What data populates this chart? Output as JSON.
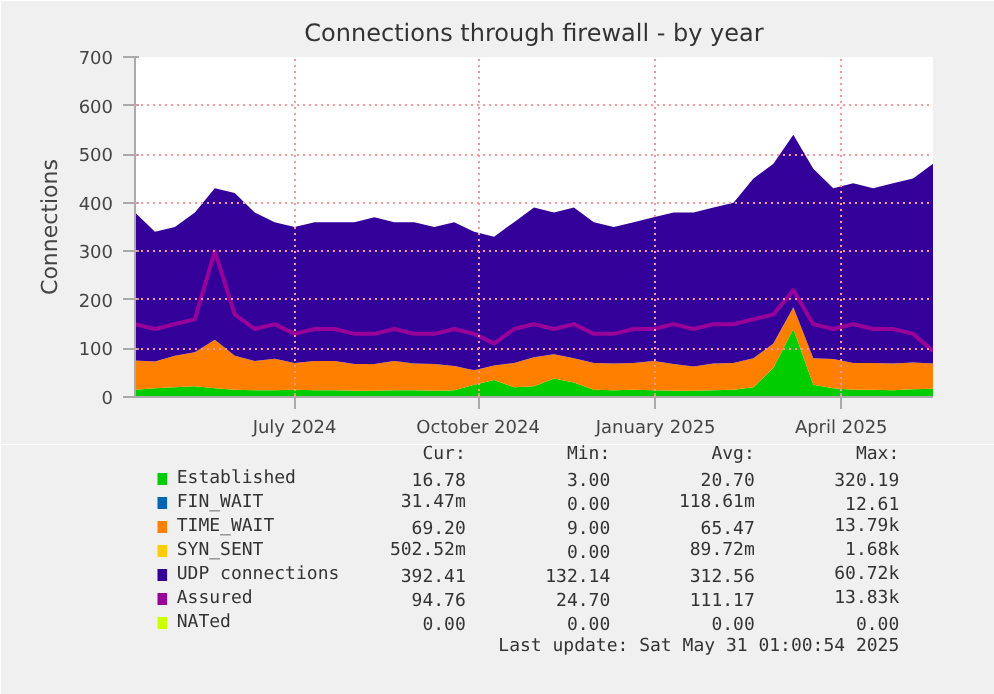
{
  "chart_data": {
    "type": "area",
    "stacked": true,
    "title": "Connections through firewall - by year",
    "ylabel": "Connections",
    "x": [
      "2024-04-26",
      "2024-05-06",
      "2024-05-16",
      "2024-05-26",
      "2024-06-05",
      "2024-06-15",
      "2024-06-25",
      "2024-07-05",
      "2024-07-15",
      "2024-07-25",
      "2024-08-04",
      "2024-08-14",
      "2024-08-24",
      "2024-09-03",
      "2024-09-13",
      "2024-09-23",
      "2024-10-03",
      "2024-10-13",
      "2024-10-23",
      "2024-11-02",
      "2024-11-12",
      "2024-11-22",
      "2024-12-02",
      "2024-12-12",
      "2024-12-22",
      "2025-01-01",
      "2025-01-11",
      "2025-01-21",
      "2025-01-31",
      "2025-02-10",
      "2025-02-20",
      "2025-03-02",
      "2025-03-12",
      "2025-03-22",
      "2025-04-01",
      "2025-04-11",
      "2025-04-21",
      "2025-05-01",
      "2025-05-11",
      "2025-05-21",
      "2025-05-31"
    ],
    "series": [
      {
        "name": "Established",
        "color": "#00cc00",
        "values": [
          15,
          18,
          20,
          22,
          18,
          15,
          14,
          14,
          15,
          14,
          14,
          13,
          13,
          14,
          14,
          13,
          14,
          25,
          35,
          20,
          22,
          38,
          30,
          15,
          14,
          15,
          14,
          13,
          13,
          14,
          15,
          20,
          60,
          140,
          25,
          18,
          15,
          15,
          14,
          16,
          17
        ]
      },
      {
        "name": "FIN_WAIT",
        "color": "#0066b3",
        "values": [
          null,
          null,
          null,
          null,
          null,
          null,
          null,
          null,
          null,
          null,
          null,
          null,
          null,
          null,
          null,
          null,
          null,
          null,
          null,
          null,
          null,
          null,
          null,
          null,
          null,
          null,
          null,
          null,
          null,
          null,
          null,
          null,
          null,
          null,
          null,
          null,
          null,
          null,
          null,
          null,
          null
        ]
      },
      {
        "name": "TIME_WAIT",
        "color": "#ff8000",
        "values": [
          60,
          55,
          65,
          70,
          100,
          70,
          60,
          65,
          55,
          60,
          60,
          55,
          55,
          60,
          55,
          55,
          50,
          30,
          30,
          50,
          60,
          50,
          50,
          55,
          55,
          55,
          60,
          55,
          50,
          55,
          55,
          60,
          50,
          45,
          55,
          60,
          55,
          55,
          55,
          55,
          52
        ]
      },
      {
        "name": "SYN_SENT",
        "color": "#ffcc00",
        "values": [
          null,
          null,
          null,
          null,
          null,
          null,
          null,
          null,
          null,
          null,
          null,
          null,
          null,
          null,
          null,
          null,
          null,
          null,
          null,
          null,
          null,
          null,
          null,
          null,
          null,
          null,
          null,
          null,
          null,
          null,
          null,
          null,
          null,
          null,
          null,
          null,
          null,
          null,
          null,
          null,
          null
        ]
      },
      {
        "name": "UDP connections",
        "color": "#330099",
        "values": [
          305,
          267,
          265,
          288,
          312,
          335,
          306,
          281,
          280,
          286,
          286,
          292,
          302,
          286,
          291,
          282,
          296,
          285,
          265,
          290,
          308,
          292,
          310,
          290,
          281,
          290,
          296,
          312,
          317,
          321,
          330,
          370,
          370,
          355,
          390,
          352,
          370,
          360,
          371,
          379,
          411
        ]
      },
      {
        "name": "Assured",
        "color": "#990099",
        "type": "line",
        "values": [
          150,
          140,
          150,
          160,
          300,
          170,
          140,
          150,
          130,
          140,
          140,
          130,
          130,
          140,
          130,
          130,
          140,
          130,
          110,
          140,
          150,
          140,
          150,
          130,
          130,
          140,
          140,
          150,
          140,
          150,
          150,
          160,
          170,
          220,
          150,
          140,
          150,
          140,
          140,
          130,
          95
        ]
      },
      {
        "name": "NATed",
        "color": "#ccff00",
        "type": "line",
        "values": [
          null,
          null,
          null,
          null,
          null,
          null,
          null,
          null,
          null,
          null,
          null,
          null,
          null,
          null,
          null,
          null,
          null,
          null,
          null,
          null,
          null,
          null,
          null,
          null,
          null,
          null,
          null,
          null,
          null,
          null,
          null,
          null,
          null,
          null,
          null,
          null,
          null,
          null,
          null,
          null,
          null
        ]
      }
    ],
    "xlim": [
      "2024-04-26",
      "2025-05-31"
    ],
    "xticks": [
      {
        "value": "2024-07-15",
        "label": "July 2024"
      },
      {
        "value": "2024-10-15",
        "label": "October 2024"
      },
      {
        "value": "2025-01-12",
        "label": "January 2025"
      },
      {
        "value": "2025-04-15",
        "label": "April 2025"
      }
    ],
    "ylim": [
      0,
      700
    ],
    "yticks": [
      0,
      100,
      200,
      300,
      400,
      500,
      600,
      700
    ],
    "grid": true,
    "legend": "bottom",
    "annotations": [
      "Cur: Min: Avg: Max:",
      "16.78 3.00 20.70 320.19",
      "31.47m 0.00 118.61m 12.61",
      "69.20 9.00 65.47 13.79k",
      "502.52m 0.00 89.72m 1.68k",
      "392.41 132.14 312.56 60.72k",
      "94.76 24.70 111.17 13.83k",
      "0.00 0.00 0.00 0.00",
      "Last update: Sat May 31 01:00:54 2025"
    ]
  }
}
